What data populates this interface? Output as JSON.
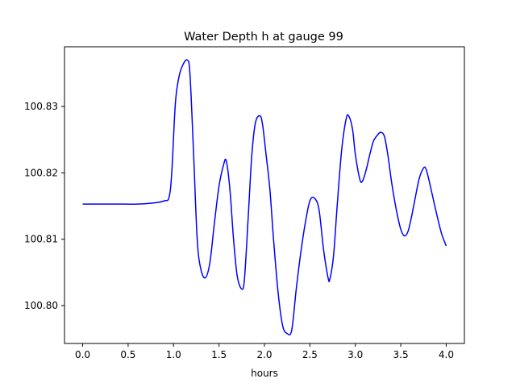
{
  "chart_data": {
    "type": "line",
    "title": "Water Depth h at gauge 99",
    "xlabel": "hours",
    "ylabel": "",
    "xlim": [
      -0.2,
      4.2
    ],
    "ylim": [
      100.7943,
      100.839
    ],
    "x_ticks": [
      0.0,
      0.5,
      1.0,
      1.5,
      2.0,
      2.5,
      3.0,
      3.5,
      4.0
    ],
    "x_tick_labels": [
      "0.0",
      "0.5",
      "1.0",
      "1.5",
      "2.0",
      "2.5",
      "3.0",
      "3.5",
      "4.0"
    ],
    "y_ticks": [
      100.8,
      100.81,
      100.82,
      100.83
    ],
    "y_tick_labels": [
      "100.80",
      "100.81",
      "100.82",
      "100.83"
    ],
    "grid": false,
    "legend": false,
    "series": [
      {
        "color": "#0000ff",
        "x": [
          0.0,
          0.2,
          0.4,
          0.6,
          0.8,
          0.9,
          0.95,
          0.98,
          1.02,
          1.06,
          1.1,
          1.15,
          1.18,
          1.22,
          1.26,
          1.3,
          1.35,
          1.4,
          1.45,
          1.5,
          1.55,
          1.58,
          1.62,
          1.66,
          1.7,
          1.75,
          1.78,
          1.82,
          1.86,
          1.9,
          1.95,
          1.98,
          2.02,
          2.06,
          2.1,
          2.15,
          2.2,
          2.25,
          2.3,
          2.35,
          2.4,
          2.45,
          2.5,
          2.55,
          2.6,
          2.65,
          2.7,
          2.72,
          2.76,
          2.8,
          2.85,
          2.9,
          2.93,
          2.97,
          3.0,
          3.05,
          3.08,
          3.12,
          3.16,
          3.2,
          3.25,
          3.28,
          3.32,
          3.36,
          3.4,
          3.45,
          3.5,
          3.54,
          3.58,
          3.62,
          3.66,
          3.7,
          3.74,
          3.77,
          3.8,
          3.85,
          3.9,
          3.95,
          4.0
        ],
        "values": [
          100.8153,
          100.8153,
          100.8153,
          100.8153,
          100.8155,
          100.8158,
          100.8163,
          100.82,
          100.8305,
          100.8345,
          100.8362,
          100.837,
          100.835,
          100.823,
          100.81,
          100.8055,
          100.8042,
          100.8065,
          100.8125,
          100.818,
          100.8212,
          100.8218,
          100.8175,
          100.81,
          100.8045,
          100.8025,
          100.804,
          100.813,
          100.8225,
          100.8275,
          100.8286,
          100.8272,
          100.8225,
          100.8175,
          100.81,
          100.802,
          100.797,
          100.7958,
          100.7963,
          100.8025,
          100.808,
          100.8125,
          100.8158,
          100.8162,
          100.8145,
          100.8085,
          100.8042,
          100.804,
          100.8075,
          100.815,
          100.8235,
          100.8282,
          100.8285,
          100.8265,
          100.8228,
          100.819,
          100.8188,
          100.8205,
          100.8228,
          100.8248,
          100.8258,
          100.8261,
          100.8255,
          100.8225,
          100.8185,
          100.8145,
          100.8115,
          100.8105,
          100.8112,
          100.8135,
          100.8163,
          100.819,
          100.8205,
          100.8208,
          100.8195,
          100.8165,
          100.8135,
          100.8108,
          100.809
        ]
      }
    ]
  }
}
